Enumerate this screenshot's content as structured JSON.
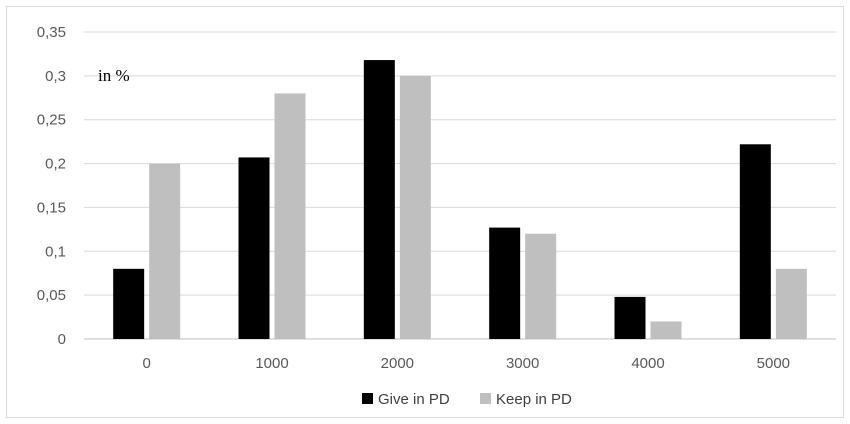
{
  "chart_data": {
    "type": "bar",
    "unit_annotation": "in %",
    "categories": [
      "0",
      "1000",
      "2000",
      "3000",
      "4000",
      "5000"
    ],
    "series": [
      {
        "name": "Give in PD",
        "color": "#000000",
        "values": [
          0.08,
          0.207,
          0.318,
          0.127,
          0.048,
          0.222
        ]
      },
      {
        "name": "Keep in PD",
        "color": "#bfbfbf",
        "values": [
          0.2,
          0.28,
          0.3,
          0.12,
          0.02,
          0.08
        ]
      }
    ],
    "ylim": [
      0,
      0.35
    ],
    "yticks": [
      "0",
      "0,05",
      "0,1",
      "0,15",
      "0,2",
      "0,25",
      "0,3",
      "0,35"
    ],
    "grid": true,
    "legend_position": "bottom"
  }
}
